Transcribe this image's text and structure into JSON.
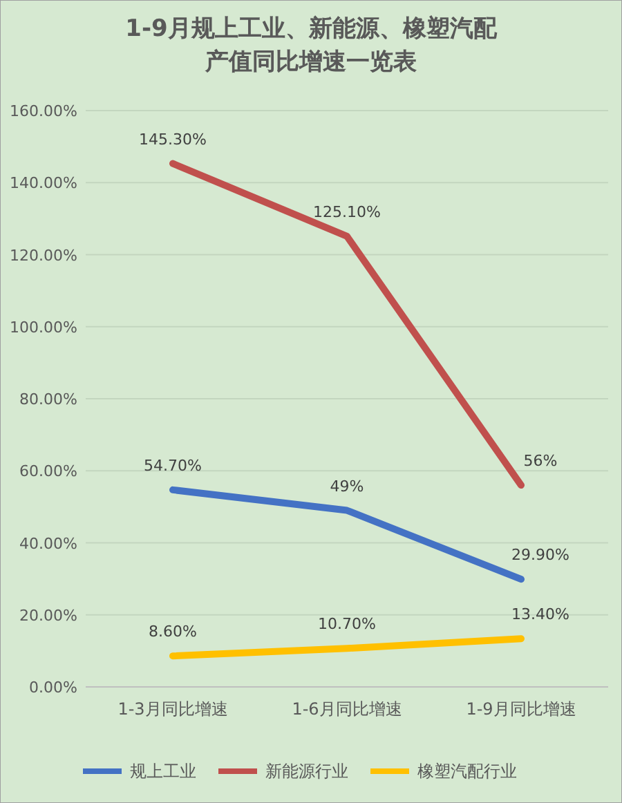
{
  "chart_data": {
    "type": "line",
    "title": "1-9月规上工业、新能源、橡塑汽配产值同比增速一览表",
    "categories": [
      "1-3月同比增速",
      "1-6月同比增速",
      "1-9月同比增速"
    ],
    "series": [
      {
        "name": "规上工业",
        "color": "#4472c4",
        "values": [
          54.7,
          49,
          29.9
        ],
        "value_labels": [
          "54.70%",
          "49%",
          "29.90%"
        ]
      },
      {
        "name": "新能源行业",
        "color": "#c0504d",
        "values": [
          145.3,
          125.1,
          56
        ],
        "value_labels": [
          "145.30%",
          "125.10%",
          "56%"
        ]
      },
      {
        "name": "橡塑汽配行业",
        "color": "#ffc000",
        "values": [
          8.6,
          10.7,
          13.4
        ],
        "value_labels": [
          "8.60%",
          "10.70%",
          "13.40%"
        ]
      }
    ],
    "ylim": [
      0,
      160
    ],
    "yticks": [
      {
        "value": 0,
        "label": "0.00%"
      },
      {
        "value": 20,
        "label": "20.00%"
      },
      {
        "value": 40,
        "label": "40.00%"
      },
      {
        "value": 60,
        "label": "60.00%"
      },
      {
        "value": 80,
        "label": "80.00%"
      },
      {
        "value": 100,
        "label": "100.00%"
      },
      {
        "value": 120,
        "label": "120.00%"
      },
      {
        "value": 140,
        "label": "140.00%"
      },
      {
        "value": 160,
        "label": "160.00%"
      }
    ],
    "grid": "y",
    "legend": "bottom",
    "line_style": "solid",
    "marker": "none"
  }
}
